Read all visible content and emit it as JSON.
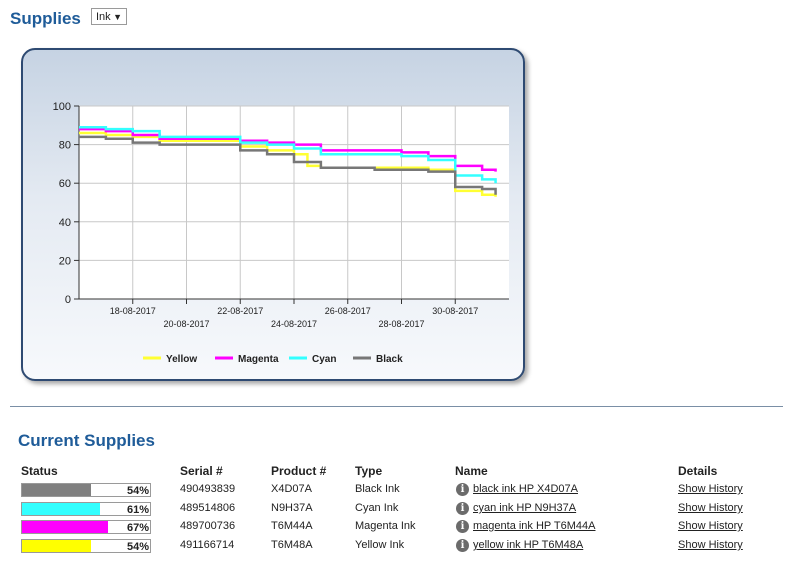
{
  "header": {
    "title": "Supplies",
    "selector_value": "Ink"
  },
  "chart_data": {
    "type": "line",
    "title": "",
    "xlabel": "",
    "ylabel": "",
    "ylim": [
      0,
      100
    ],
    "yticks": [
      0,
      20,
      40,
      60,
      80,
      100
    ],
    "xlim": [
      "2017-08-16",
      "2017-09-01"
    ],
    "xticks": [
      "18-08-2017",
      "20-08-2017",
      "22-08-2017",
      "24-08-2017",
      "26-08-2017",
      "28-08-2017",
      "30-08-2017"
    ],
    "grid": true,
    "legend_position": "bottom",
    "series": [
      {
        "name": "Yellow",
        "color": "#ffff33",
        "points": [
          [
            "2017-08-16",
            86
          ],
          [
            "2017-08-17",
            85
          ],
          [
            "2017-08-18",
            84
          ],
          [
            "2017-08-19",
            82
          ],
          [
            "2017-08-22",
            79
          ],
          [
            "2017-08-23",
            77
          ],
          [
            "2017-08-24",
            75
          ],
          [
            "2017-08-24.5",
            69
          ],
          [
            "2017-08-25",
            68
          ],
          [
            "2017-08-27",
            68
          ],
          [
            "2017-08-28",
            68
          ],
          [
            "2017-08-29",
            67
          ],
          [
            "2017-08-30",
            56
          ],
          [
            "2017-08-31",
            54
          ],
          [
            "2017-08-31.5",
            53
          ]
        ]
      },
      {
        "name": "Magenta",
        "color": "#ff00ff",
        "points": [
          [
            "2017-08-16",
            88
          ],
          [
            "2017-08-17",
            87
          ],
          [
            "2017-08-18",
            85
          ],
          [
            "2017-08-19",
            83
          ],
          [
            "2017-08-22",
            82
          ],
          [
            "2017-08-23",
            81
          ],
          [
            "2017-08-24",
            80
          ],
          [
            "2017-08-25",
            77
          ],
          [
            "2017-08-27",
            77
          ],
          [
            "2017-08-28",
            76
          ],
          [
            "2017-08-29",
            74
          ],
          [
            "2017-08-30",
            69
          ],
          [
            "2017-08-31",
            67
          ],
          [
            "2017-08-31.5",
            66
          ]
        ]
      },
      {
        "name": "Cyan",
        "color": "#33ffff",
        "points": [
          [
            "2017-08-16",
            89
          ],
          [
            "2017-08-17",
            88
          ],
          [
            "2017-08-18",
            87
          ],
          [
            "2017-08-19",
            84
          ],
          [
            "2017-08-22",
            81
          ],
          [
            "2017-08-23",
            80
          ],
          [
            "2017-08-24",
            78
          ],
          [
            "2017-08-25",
            75
          ],
          [
            "2017-08-27",
            75
          ],
          [
            "2017-08-28",
            74
          ],
          [
            "2017-08-29",
            72
          ],
          [
            "2017-08-30",
            64
          ],
          [
            "2017-08-31",
            62
          ],
          [
            "2017-08-31.5",
            60
          ]
        ]
      },
      {
        "name": "Black",
        "color": "#777777",
        "points": [
          [
            "2017-08-16",
            84
          ],
          [
            "2017-08-17",
            83
          ],
          [
            "2017-08-18",
            81
          ],
          [
            "2017-08-19",
            80
          ],
          [
            "2017-08-22",
            77
          ],
          [
            "2017-08-23",
            75
          ],
          [
            "2017-08-24",
            71
          ],
          [
            "2017-08-25",
            68
          ],
          [
            "2017-08-27",
            67
          ],
          [
            "2017-08-28",
            67
          ],
          [
            "2017-08-29",
            66
          ],
          [
            "2017-08-30",
            58
          ],
          [
            "2017-08-31",
            57
          ],
          [
            "2017-08-31.5",
            54
          ]
        ]
      }
    ]
  },
  "current_supplies": {
    "title": "Current Supplies",
    "headers": {
      "status": "Status",
      "serial": "Serial #",
      "product": "Product #",
      "type": "Type",
      "name": "Name",
      "details": "Details"
    },
    "rows": [
      {
        "percent": 54,
        "percent_label": "54%",
        "color": "#808080",
        "serial": "490493839",
        "product": "X4D07A",
        "type": "Black Ink",
        "name": "black ink HP X4D07A",
        "details": "Show History"
      },
      {
        "percent": 61,
        "percent_label": "61%",
        "color": "#33ffff",
        "serial": "489514806",
        "product": "N9H37A",
        "type": "Cyan Ink",
        "name": "cyan ink HP N9H37A",
        "details": "Show History"
      },
      {
        "percent": 67,
        "percent_label": "67%",
        "color": "#ff00ff",
        "serial": "489700736",
        "product": "T6M44A",
        "type": "Magenta Ink",
        "name": "magenta ink HP T6M44A",
        "details": "Show History"
      },
      {
        "percent": 54,
        "percent_label": "54%",
        "color": "#ffff00",
        "serial": "491166714",
        "product": "T6M48A",
        "type": "Yellow Ink",
        "name": "yellow ink HP T6M48A",
        "details": "Show History"
      }
    ]
  }
}
